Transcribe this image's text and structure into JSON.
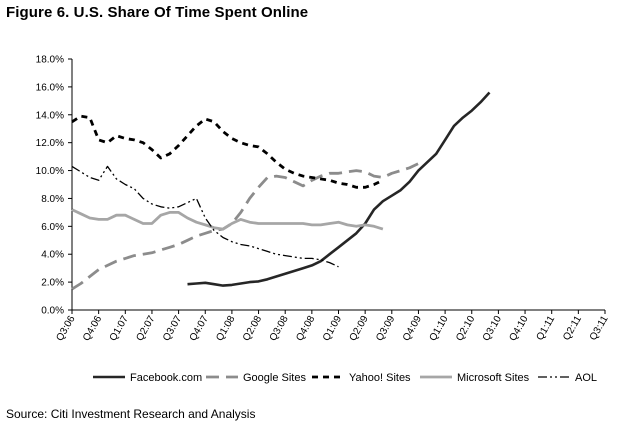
{
  "title": "Figure 6. U.S. Share Of Time Spent Online",
  "source": "Source: Citi Investment Research and Analysis",
  "chart_data": {
    "type": "line",
    "title": "Figure 6. U.S. Share Of Time Spent Online",
    "xlabel": "",
    "ylabel": "",
    "ylim": [
      0,
      18
    ],
    "y_ticks": [
      "0.0%",
      "2.0%",
      "4.0%",
      "6.0%",
      "8.0%",
      "10.0%",
      "12.0%",
      "14.0%",
      "16.0%",
      "18.0%"
    ],
    "x_tick_labels": [
      "Q3:06",
      "Q4:06",
      "Q1:07",
      "Q2:07",
      "Q3:07",
      "Q4:07",
      "Q1:08",
      "Q2:08",
      "Q3:08",
      "Q4:08",
      "Q1:09",
      "Q2:09",
      "Q3:09",
      "Q4:09",
      "Q1:10",
      "Q2:10",
      "Q3:10",
      "Q4:10",
      "Q1:11",
      "Q2:11",
      "Q3:11"
    ],
    "x": [
      0,
      0.333,
      0.667,
      1,
      1.333,
      1.667,
      2,
      2.333,
      2.667,
      3,
      3.333,
      3.667,
      4,
      4.333,
      4.667,
      5,
      5.333,
      5.667,
      6,
      6.333,
      6.667,
      7,
      7.333,
      7.667,
      8,
      8.333,
      8.667,
      9,
      9.333,
      9.667,
      10,
      10.333,
      10.667,
      11,
      11.333,
      11.667,
      12,
      12.333,
      12.667,
      13,
      13.333,
      13.667,
      14,
      14.333,
      14.667,
      15,
      15.333,
      15.667,
      16,
      16.333,
      16.667,
      17,
      17.333,
      17.667,
      18,
      18.333,
      18.667,
      19,
      19.333,
      19.667,
      20
    ],
    "grid": false,
    "legend_position": "bottom",
    "series": [
      {
        "name": "Facebook.com",
        "style": "solid",
        "color": "#262626",
        "values": [
          null,
          null,
          null,
          null,
          null,
          null,
          null,
          null,
          null,
          null,
          null,
          null,
          null,
          1.85,
          1.9,
          1.95,
          1.85,
          1.75,
          1.8,
          1.9,
          2.0,
          2.05,
          2.2,
          2.4,
          2.6,
          2.8,
          3.0,
          3.2,
          3.5,
          4.0,
          4.5,
          5.0,
          5.5,
          6.2,
          7.2,
          7.8,
          8.2,
          8.6,
          9.2,
          10.0,
          10.6,
          11.2,
          12.2,
          13.2,
          13.8,
          14.3,
          14.9,
          15.6,
          null,
          null,
          null,
          null,
          null,
          null,
          null,
          null,
          null,
          null,
          null,
          null,
          null
        ]
      },
      {
        "name": "Google Sites",
        "style": "long-dash",
        "color": "#8c8c8c",
        "values": [
          1.5,
          1.9,
          2.4,
          2.9,
          3.2,
          3.5,
          3.7,
          3.9,
          4.0,
          4.1,
          4.3,
          4.5,
          4.7,
          5.0,
          5.3,
          5.5,
          5.7,
          5.8,
          6.2,
          7.0,
          8.0,
          8.8,
          9.5,
          9.6,
          9.5,
          9.2,
          8.9,
          9.3,
          9.6,
          9.8,
          9.8,
          9.9,
          10.0,
          9.9,
          9.6,
          9.5,
          9.8,
          10.0,
          10.2,
          10.5,
          null,
          null,
          null,
          null,
          null,
          null,
          null,
          null,
          null,
          null,
          null,
          null,
          null,
          null,
          null,
          null,
          null,
          null,
          null,
          null,
          null
        ]
      },
      {
        "name": "Yahoo! Sites",
        "style": "dash",
        "color": "#000000",
        "values": [
          13.5,
          13.9,
          13.8,
          12.2,
          12.0,
          12.5,
          12.3,
          12.2,
          12.0,
          11.5,
          10.9,
          11.2,
          11.8,
          12.5,
          13.2,
          13.7,
          13.5,
          12.8,
          12.3,
          12.0,
          11.8,
          11.7,
          11.2,
          10.6,
          10.1,
          9.8,
          9.6,
          9.5,
          9.4,
          9.3,
          9.1,
          9.0,
          8.8,
          8.8,
          9.0,
          9.3,
          null,
          null,
          null,
          null,
          null,
          null,
          null,
          null,
          null,
          null,
          null,
          null,
          null,
          null,
          null,
          null,
          null,
          null,
          null,
          null,
          null,
          null,
          null,
          null,
          null
        ]
      },
      {
        "name": "Microsoft Sites",
        "style": "solid-thick",
        "color": "#a6a6a6",
        "values": [
          7.2,
          6.9,
          6.6,
          6.5,
          6.5,
          6.8,
          6.8,
          6.5,
          6.2,
          6.2,
          6.8,
          7.0,
          7.0,
          6.6,
          6.3,
          6.1,
          5.9,
          5.8,
          6.2,
          6.5,
          6.3,
          6.2,
          6.2,
          6.2,
          6.2,
          6.2,
          6.2,
          6.1,
          6.1,
          6.2,
          6.3,
          6.1,
          6.0,
          6.1,
          6.0,
          5.8,
          null,
          null,
          null,
          null,
          null,
          null,
          null,
          null,
          null,
          null,
          null,
          null,
          null,
          null,
          null,
          null,
          null,
          null,
          null,
          null,
          null,
          null,
          null,
          null,
          null
        ]
      },
      {
        "name": "AOL",
        "style": "dash-dot-dot",
        "color": "#000000",
        "values": [
          10.3,
          9.9,
          9.5,
          9.3,
          10.3,
          9.4,
          9.0,
          8.7,
          8.0,
          7.6,
          7.4,
          7.3,
          7.4,
          7.7,
          8.0,
          6.6,
          5.7,
          5.2,
          4.9,
          4.7,
          4.6,
          4.4,
          4.2,
          4.0,
          3.9,
          3.8,
          3.7,
          3.7,
          3.6,
          3.4,
          3.1,
          null,
          null,
          null,
          null,
          null,
          null,
          null,
          null,
          null,
          null,
          null,
          null,
          null,
          null,
          null,
          null,
          null,
          null,
          null,
          null,
          null,
          null,
          null,
          null,
          null,
          null,
          null,
          null,
          null,
          null
        ]
      }
    ]
  }
}
